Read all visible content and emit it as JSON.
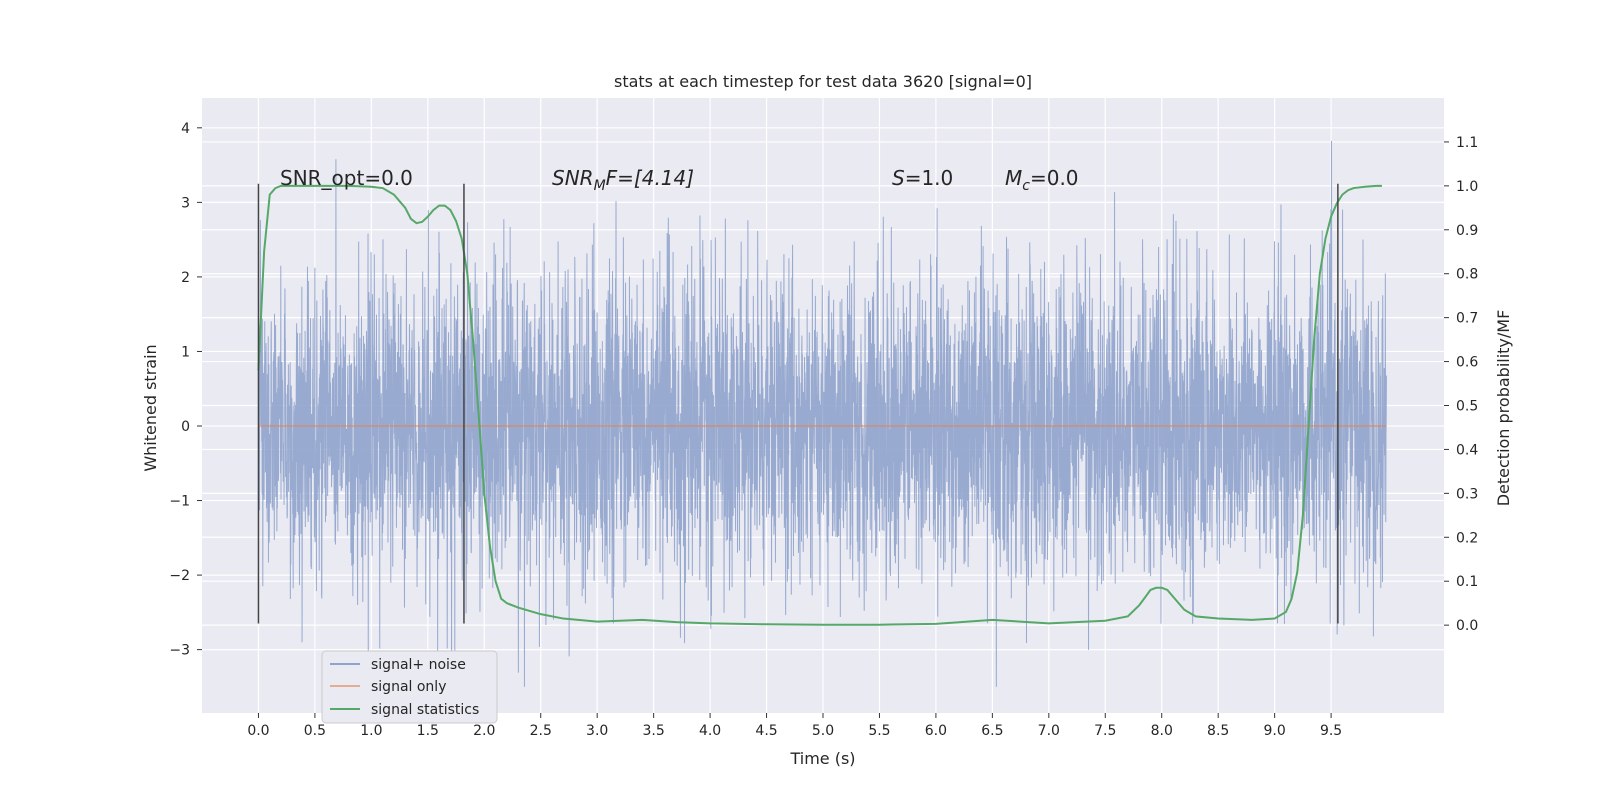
{
  "chart_data": {
    "type": "line",
    "title": "stats at each timestep for test data 3620 [signal=0]",
    "xlabel": "Time (s)",
    "ylabel_left": "Whitened strain",
    "ylabel_right": "Detection probability/MF",
    "xlim": [
      -0.5,
      10.5
    ],
    "ylim_left": [
      -3.85,
      4.4
    ],
    "ylim_right": [
      -0.2,
      1.2
    ],
    "x_ticks": [
      "0.0",
      "0.5",
      "1.0",
      "1.5",
      "2.0",
      "2.5",
      "3.0",
      "3.5",
      "4.0",
      "4.5",
      "5.0",
      "5.5",
      "6.0",
      "6.5",
      "7.0",
      "7.5",
      "8.0",
      "8.5",
      "9.0",
      "9.5"
    ],
    "y_ticks_left": [
      "4",
      "3",
      "2",
      "1",
      "0",
      "−1",
      "−2",
      "−3"
    ],
    "y_ticks_right": [
      "1.1",
      "1.0",
      "0.9",
      "0.8",
      "0.7",
      "0.6",
      "0.5",
      "0.4",
      "0.3",
      "0.2",
      "0.1",
      "0.0"
    ],
    "grid": true,
    "legend_position": "lower-left",
    "colors": {
      "noise": "#8fa3cc",
      "signal_only": "#dd8452",
      "statistics": "#55a868",
      "segment_lines": "#444444",
      "background": "#eaeaf2",
      "grid": "#ffffff"
    },
    "annotations": {
      "snr_opt": "SNR_opt=0.0",
      "snr_mf_sym": "SNR",
      "snr_mf_sub": "M",
      "snr_mf_rest": "F=[4.14]",
      "s_sym": "S",
      "s_rest": "=1.0",
      "mc_sym": "M",
      "mc_sub": "c",
      "mc_rest": "=0.0"
    },
    "series": [
      {
        "name": "signal+ noise",
        "x_range": [
          0.0,
          9.99
        ],
        "amplitude_std": 1.0,
        "y_min": -3.5,
        "y_max": 4.05
      },
      {
        "name": "signal only",
        "x": [
          0.0,
          9.99
        ],
        "y": [
          0.0,
          0.0
        ]
      },
      {
        "name": "signal statistics",
        "x": [
          0.0,
          0.05,
          0.1,
          0.15,
          0.2,
          0.3,
          0.5,
          0.8,
          1.0,
          1.1,
          1.2,
          1.3,
          1.35,
          1.4,
          1.45,
          1.5,
          1.55,
          1.6,
          1.65,
          1.7,
          1.75,
          1.8,
          1.85,
          1.9,
          1.95,
          2.0,
          2.05,
          2.1,
          2.15,
          2.2,
          2.3,
          2.5,
          2.7,
          3.0,
          3.4,
          3.7,
          4.0,
          4.5,
          5.0,
          5.5,
          6.0,
          6.5,
          7.0,
          7.5,
          7.7,
          7.8,
          7.9,
          7.95,
          8.0,
          8.05,
          8.1,
          8.2,
          8.3,
          8.5,
          8.8,
          9.0,
          9.1,
          9.15,
          9.2,
          9.25,
          9.3,
          9.35,
          9.4,
          9.45,
          9.5,
          9.55,
          9.6,
          9.65,
          9.7,
          9.8,
          9.9,
          9.95
        ],
        "y": [
          0.58,
          0.85,
          0.98,
          0.995,
          1.0,
          1.0,
          1.0,
          1.0,
          0.998,
          0.995,
          0.98,
          0.95,
          0.925,
          0.915,
          0.918,
          0.93,
          0.945,
          0.955,
          0.955,
          0.945,
          0.92,
          0.88,
          0.8,
          0.65,
          0.48,
          0.3,
          0.18,
          0.1,
          0.06,
          0.05,
          0.04,
          0.025,
          0.015,
          0.008,
          0.012,
          0.007,
          0.004,
          0.002,
          0.001,
          0.001,
          0.003,
          0.012,
          0.004,
          0.01,
          0.02,
          0.045,
          0.08,
          0.085,
          0.085,
          0.08,
          0.065,
          0.035,
          0.02,
          0.015,
          0.012,
          0.015,
          0.03,
          0.06,
          0.12,
          0.25,
          0.45,
          0.65,
          0.8,
          0.88,
          0.93,
          0.96,
          0.98,
          0.99,
          0.995,
          0.998,
          1.0,
          1.0
        ]
      }
    ],
    "segment_lines": [
      {
        "x": 0.0,
        "y_left": [
          -2.65,
          3.25
        ]
      },
      {
        "x": 1.82,
        "y_left": [
          -2.65,
          3.25
        ]
      },
      {
        "x": 9.56,
        "y_left": [
          -2.65,
          3.25
        ]
      }
    ]
  }
}
